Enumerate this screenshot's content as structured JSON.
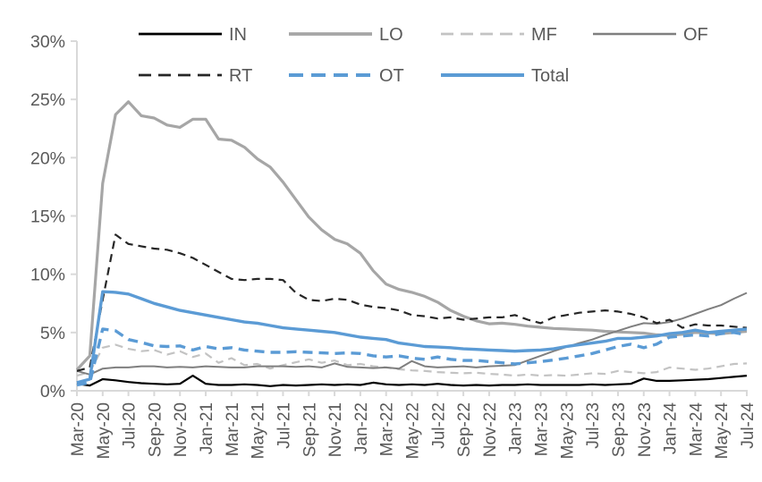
{
  "chart_data": {
    "type": "line",
    "title": "",
    "xlabel": "",
    "ylabel": "",
    "ylim": [
      0,
      30
    ],
    "y_tick_labels": [
      "0%",
      "5%",
      "10%",
      "15%",
      "20%",
      "25%",
      "30%"
    ],
    "x_tick_interval": 2,
    "grid": false,
    "legend_position": "top",
    "axis_text_color": "#595959",
    "axis_line_color": "#d9d9d9",
    "x": [
      "Mar-20",
      "Apr-20",
      "May-20",
      "Jun-20",
      "Jul-20",
      "Aug-20",
      "Sep-20",
      "Oct-20",
      "Nov-20",
      "Dec-20",
      "Jan-21",
      "Feb-21",
      "Mar-21",
      "Apr-21",
      "May-21",
      "Jun-21",
      "Jul-21",
      "Aug-21",
      "Sep-21",
      "Oct-21",
      "Nov-21",
      "Dec-21",
      "Jan-22",
      "Feb-22",
      "Mar-22",
      "Apr-22",
      "May-22",
      "Jun-22",
      "Jul-22",
      "Aug-22",
      "Sep-22",
      "Oct-22",
      "Nov-22",
      "Dec-22",
      "Jan-23",
      "Feb-23",
      "Mar-23",
      "Apr-23",
      "May-23",
      "Jun-23",
      "Jul-23",
      "Aug-23",
      "Sep-23",
      "Oct-23",
      "Nov-23",
      "Dec-23",
      "Jan-24",
      "Feb-24",
      "Mar-24",
      "Apr-24",
      "May-24",
      "Jun-24",
      "Jul-24"
    ],
    "series": [
      {
        "name": "IN",
        "color": "#000000",
        "dash": "solid",
        "width": 2.2,
        "values": [
          0.6,
          0.45,
          1.0,
          0.9,
          0.75,
          0.65,
          0.6,
          0.55,
          0.6,
          1.3,
          0.6,
          0.5,
          0.5,
          0.55,
          0.5,
          0.4,
          0.5,
          0.45,
          0.5,
          0.55,
          0.5,
          0.55,
          0.5,
          0.7,
          0.55,
          0.5,
          0.55,
          0.5,
          0.6,
          0.5,
          0.45,
          0.5,
          0.45,
          0.5,
          0.5,
          0.55,
          0.5,
          0.5,
          0.5,
          0.5,
          0.55,
          0.5,
          0.55,
          0.6,
          1.05,
          0.85,
          0.85,
          0.9,
          0.95,
          1.0,
          1.1,
          1.2,
          1.3
        ]
      },
      {
        "name": "LO",
        "color": "#a6a6a6",
        "dash": "solid",
        "width": 3.2,
        "values": [
          1.8,
          3.0,
          17.8,
          23.7,
          24.8,
          23.6,
          23.4,
          22.8,
          22.6,
          23.3,
          23.3,
          21.6,
          21.5,
          20.9,
          19.9,
          19.2,
          17.9,
          16.4,
          14.9,
          13.8,
          13.0,
          12.6,
          11.8,
          10.3,
          9.15,
          8.7,
          8.45,
          8.1,
          7.6,
          6.9,
          6.4,
          6.0,
          5.75,
          5.8,
          5.7,
          5.55,
          5.45,
          5.35,
          5.3,
          5.25,
          5.2,
          5.1,
          5.05,
          5.0,
          4.95,
          4.8,
          4.75,
          4.85,
          5.0,
          4.95,
          4.9,
          5.0,
          5.1
        ]
      },
      {
        "name": "MF",
        "color": "#c3c3c3",
        "dash": "dashed",
        "width": 2.2,
        "values": [
          1.3,
          1.6,
          3.7,
          3.95,
          3.6,
          3.4,
          3.5,
          3.1,
          3.4,
          2.9,
          3.2,
          2.4,
          2.8,
          2.2,
          2.3,
          1.9,
          2.2,
          2.45,
          2.7,
          2.4,
          2.6,
          2.2,
          2.3,
          2.1,
          2.0,
          1.85,
          1.75,
          1.7,
          1.6,
          1.55,
          1.5,
          1.55,
          1.45,
          1.4,
          1.3,
          1.4,
          1.3,
          1.35,
          1.3,
          1.4,
          1.5,
          1.45,
          1.7,
          1.6,
          1.5,
          1.6,
          2.0,
          1.9,
          1.8,
          1.9,
          2.1,
          2.3,
          2.35
        ]
      },
      {
        "name": "OF",
        "color": "#7f7f7f",
        "dash": "solid",
        "width": 2.0,
        "values": [
          1.7,
          1.4,
          1.9,
          2.0,
          2.0,
          2.1,
          2.1,
          2.0,
          2.05,
          2.0,
          2.1,
          2.05,
          2.0,
          2.0,
          2.1,
          2.1,
          2.1,
          2.05,
          2.1,
          2.0,
          2.35,
          2.05,
          2.0,
          1.95,
          2.0,
          1.9,
          2.55,
          2.1,
          2.0,
          2.05,
          2.1,
          2.0,
          2.1,
          2.15,
          2.2,
          2.6,
          3.0,
          3.4,
          3.75,
          4.1,
          4.4,
          4.8,
          5.15,
          5.5,
          5.8,
          5.75,
          5.9,
          6.2,
          6.6,
          7.0,
          7.35,
          7.9,
          8.4
        ]
      },
      {
        "name": "RT",
        "color": "#262626",
        "dash": "dashed",
        "width": 2.2,
        "values": [
          1.7,
          2.0,
          7.8,
          13.4,
          12.6,
          12.4,
          12.2,
          12.1,
          11.8,
          11.4,
          10.8,
          10.2,
          9.6,
          9.5,
          9.6,
          9.6,
          9.5,
          8.4,
          7.8,
          7.7,
          7.9,
          7.8,
          7.4,
          7.2,
          7.1,
          6.9,
          6.5,
          6.4,
          6.2,
          6.3,
          6.1,
          6.2,
          6.3,
          6.3,
          6.5,
          6.1,
          5.8,
          6.3,
          6.5,
          6.7,
          6.8,
          6.9,
          6.8,
          6.6,
          6.3,
          5.8,
          6.1,
          5.4,
          5.7,
          5.6,
          5.6,
          5.5,
          5.4
        ]
      },
      {
        "name": "OT",
        "color": "#5b9bd5",
        "dash": "dashed",
        "width": 3.4,
        "values": [
          0.5,
          0.7,
          5.3,
          5.15,
          4.4,
          4.15,
          3.85,
          3.8,
          3.85,
          3.5,
          3.8,
          3.6,
          3.7,
          3.5,
          3.4,
          3.3,
          3.3,
          3.35,
          3.3,
          3.25,
          3.2,
          3.25,
          3.2,
          3.0,
          2.9,
          3.0,
          2.8,
          2.7,
          2.9,
          2.7,
          2.6,
          2.6,
          2.5,
          2.4,
          2.3,
          2.4,
          2.5,
          2.65,
          2.8,
          3.0,
          3.2,
          3.5,
          3.8,
          4.0,
          3.7,
          4.0,
          4.6,
          4.7,
          4.8,
          4.7,
          4.9,
          5.0,
          4.8
        ]
      },
      {
        "name": "Total",
        "color": "#5b9bd5",
        "dash": "solid",
        "width": 3.4,
        "values": [
          0.7,
          1.0,
          8.5,
          8.45,
          8.3,
          7.9,
          7.5,
          7.2,
          6.9,
          6.7,
          6.5,
          6.3,
          6.1,
          5.9,
          5.8,
          5.6,
          5.4,
          5.3,
          5.2,
          5.1,
          5.0,
          4.8,
          4.6,
          4.5,
          4.4,
          4.1,
          3.95,
          3.8,
          3.75,
          3.7,
          3.6,
          3.55,
          3.5,
          3.45,
          3.4,
          3.45,
          3.5,
          3.6,
          3.8,
          3.95,
          4.1,
          4.25,
          4.5,
          4.5,
          4.6,
          4.7,
          4.9,
          5.0,
          5.2,
          5.0,
          5.1,
          5.2,
          5.3
        ]
      }
    ],
    "legend_rows": [
      [
        "IN",
        "LO",
        "MF",
        "OF"
      ],
      [
        "RT",
        "OT",
        "Total"
      ]
    ]
  }
}
